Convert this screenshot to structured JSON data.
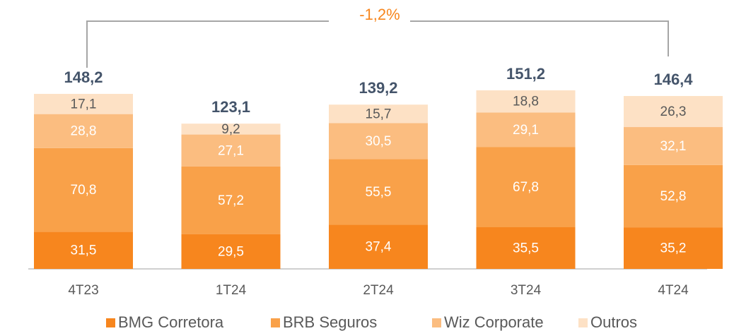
{
  "chart_data": {
    "type": "stacked_bar",
    "annotation": "-1,2%",
    "categories": [
      "4T23",
      "1T24",
      "2T24",
      "3T24",
      "4T24"
    ],
    "series": [
      {
        "name": "BMG Corretora",
        "color": "#f7861e",
        "values": [
          31.5,
          29.5,
          37.4,
          35.5,
          35.2
        ],
        "value_labels": [
          "31,5",
          "29,5",
          "37,4",
          "35,5",
          "35,2"
        ]
      },
      {
        "name": "BRB Seguros",
        "color": "#f9a149",
        "values": [
          70.8,
          57.2,
          55.5,
          67.8,
          52.8
        ],
        "value_labels": [
          "70,8",
          "57,2",
          "55,5",
          "67,8",
          "52,8"
        ]
      },
      {
        "name": "Wiz Corporate",
        "color": "#fbbd80",
        "values": [
          28.8,
          27.1,
          30.5,
          29.1,
          32.1
        ],
        "value_labels": [
          "28,8",
          "27,1",
          "30,5",
          "29,1",
          "32,1"
        ]
      },
      {
        "name": "Outros",
        "color": "#fde1c5",
        "values": [
          17.1,
          9.2,
          15.7,
          18.8,
          26.3
        ],
        "value_labels": [
          "17,1",
          "9,2",
          "15,7",
          "18,8",
          "26,3"
        ]
      }
    ],
    "totals": {
      "values": [
        148.2,
        123.1,
        139.2,
        151.2,
        146.4
      ],
      "value_labels": [
        "148,2",
        "123,1",
        "139,2",
        "151,2",
        "146,4"
      ]
    }
  }
}
